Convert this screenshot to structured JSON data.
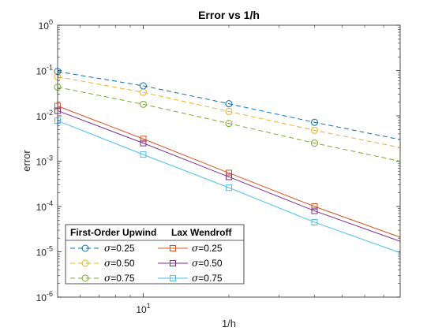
{
  "chart_data": {
    "type": "line",
    "title": "Error vs 1/h",
    "xlabel": "1/h",
    "ylabel": "error",
    "xscale": "log",
    "yscale": "log",
    "xlim": [
      5,
      80
    ],
    "ylim": [
      1e-06,
      1
    ],
    "x_ticks": [
      {
        "value": 10,
        "base": "10",
        "exp": "1"
      }
    ],
    "y_ticks": [
      {
        "value": 1,
        "base": "10",
        "exp": "0"
      },
      {
        "value": 0.1,
        "base": "10",
        "exp": "-1"
      },
      {
        "value": 0.01,
        "base": "10",
        "exp": "-2"
      },
      {
        "value": 0.001,
        "base": "10",
        "exp": "-3"
      },
      {
        "value": 0.0001,
        "base": "10",
        "exp": "-4"
      },
      {
        "value": 1e-05,
        "base": "10",
        "exp": "-5"
      },
      {
        "value": 1e-06,
        "base": "10",
        "exp": "-6"
      }
    ],
    "grid": false,
    "legend_placement": "bottom-left",
    "legend_groups": [
      {
        "header": "First-Order Upwind",
        "series_indices": [
          0,
          1,
          2
        ]
      },
      {
        "header": "Lax Wendroff",
        "series_indices": [
          3,
          4,
          5
        ]
      }
    ],
    "series": [
      {
        "name": "=0.25",
        "symbol": "σ",
        "group": "First-Order Upwind",
        "color": "#0072BD",
        "dash": "dashed",
        "marker": "circle",
        "x": [
          5,
          10,
          20,
          40,
          80
        ],
        "y": [
          0.095,
          0.046,
          0.0185,
          0.0072,
          0.003
        ]
      },
      {
        "name": "=0.50",
        "symbol": "σ",
        "group": "First-Order Upwind",
        "color": "#EDB120",
        "dash": "dashed",
        "marker": "circle",
        "x": [
          5,
          10,
          20,
          40,
          80
        ],
        "y": [
          0.073,
          0.033,
          0.0125,
          0.0048,
          0.002
        ]
      },
      {
        "name": "=0.75",
        "symbol": "σ",
        "group": "First-Order Upwind",
        "color": "#77AC30",
        "dash": "dashed",
        "marker": "circle",
        "x": [
          5,
          10,
          20,
          40,
          80
        ],
        "y": [
          0.043,
          0.018,
          0.0068,
          0.0025,
          0.001
        ]
      },
      {
        "name": "=0.25",
        "symbol": "σ",
        "group": "Lax Wendroff",
        "color": "#D95319",
        "dash": "solid",
        "marker": "square",
        "x": [
          5,
          10,
          20,
          40,
          80
        ],
        "y": [
          0.0165,
          0.0031,
          0.00055,
          0.0001,
          2.1e-05
        ]
      },
      {
        "name": "=0.50",
        "symbol": "σ",
        "group": "Lax Wendroff",
        "color": "#7E2F8E",
        "dash": "solid",
        "marker": "square",
        "x": [
          5,
          10,
          20,
          40,
          80
        ],
        "y": [
          0.013,
          0.0025,
          0.00045,
          8e-05,
          1.7e-05
        ]
      },
      {
        "name": "=0.75",
        "symbol": "σ",
        "group": "Lax Wendroff",
        "color": "#4DBEEE",
        "dash": "solid",
        "marker": "square",
        "x": [
          5,
          10,
          20,
          40,
          80
        ],
        "y": [
          0.0078,
          0.0014,
          0.00026,
          4.5e-05,
          9.5e-06
        ]
      }
    ]
  }
}
